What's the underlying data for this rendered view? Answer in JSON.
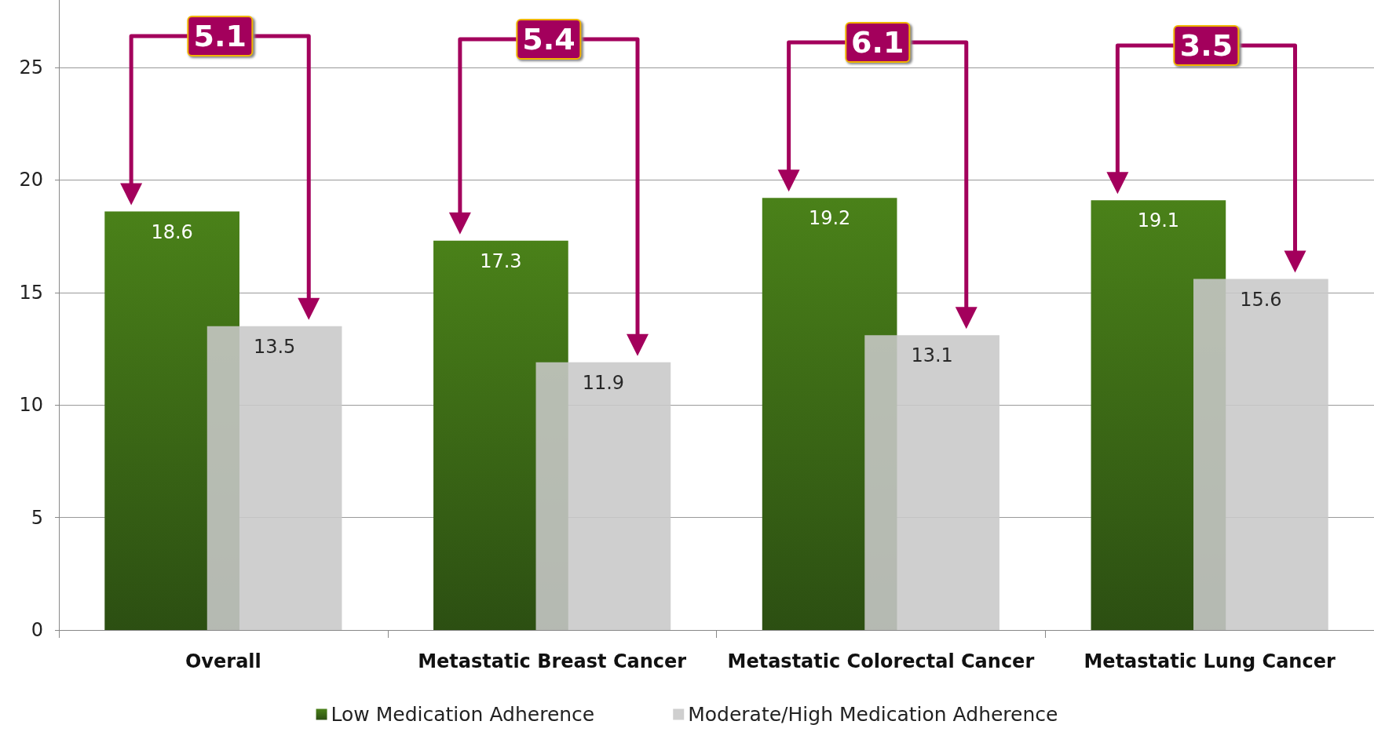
{
  "chart_data": {
    "type": "bar",
    "categories": [
      "Overall",
      "Metastatic Breast Cancer",
      "Metastatic Colorectal Cancer",
      "Metastatic Lung Cancer"
    ],
    "series": [
      {
        "name": "Low Medication Adherence",
        "color": "#4a8119",
        "values": [
          18.6,
          17.3,
          19.2,
          19.1
        ]
      },
      {
        "name": "Moderate/High Medication Adherence",
        "color": "#c8c8c8",
        "values": [
          13.5,
          11.9,
          13.1,
          15.6
        ]
      }
    ],
    "ylim": [
      0,
      28
    ],
    "yticks": [
      0,
      5,
      10,
      15,
      20,
      25
    ],
    "grid": "y",
    "legend": "bottom",
    "data_labels": true,
    "annotations": [
      "5.1",
      "5.4",
      "6.1",
      "3.5"
    ]
  }
}
